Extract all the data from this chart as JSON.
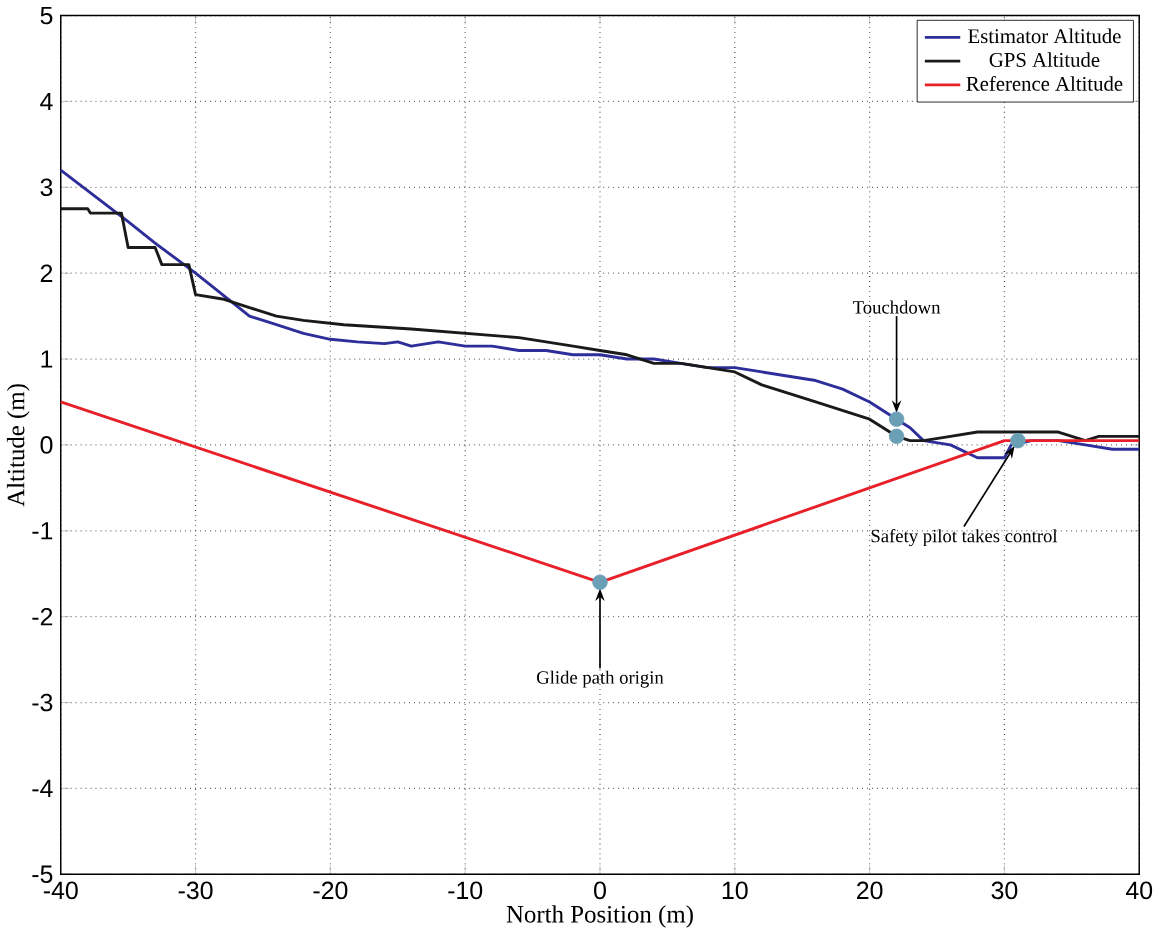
{
  "chart_data": {
    "type": "line",
    "xlabel": "North Position (m)",
    "ylabel": "Altitude (m)",
    "xlim": [
      -40,
      40
    ],
    "ylim": [
      -5,
      5
    ],
    "xticks": [
      -40,
      -30,
      -20,
      -10,
      0,
      10,
      20,
      30,
      40
    ],
    "yticks": [
      -5,
      -4,
      -3,
      -2,
      -1,
      0,
      1,
      2,
      3,
      4,
      5
    ],
    "grid": true,
    "legend": "top right",
    "marker": "none",
    "line_style": "solid",
    "series": [
      {
        "name": "Estimator Altitude",
        "color": "#2e2e9a",
        "x": [
          -40,
          -35,
          -33,
          -30,
          -28,
          -26,
          -24,
          -22,
          -20,
          -18,
          -16,
          -15,
          -14,
          -12,
          -10,
          -8,
          -6,
          -4,
          -2,
          0,
          2,
          4,
          6,
          8,
          10,
          12,
          14,
          16,
          18,
          20,
          22,
          23,
          24,
          26,
          28,
          30,
          30.5,
          32,
          34,
          36,
          38,
          40
        ],
        "values": [
          3.2,
          2.6,
          2.35,
          2.0,
          1.75,
          1.5,
          1.4,
          1.3,
          1.23,
          1.2,
          1.18,
          1.2,
          1.15,
          1.2,
          1.15,
          1.15,
          1.1,
          1.1,
          1.05,
          1.05,
          1.0,
          1.0,
          0.95,
          0.9,
          0.9,
          0.85,
          0.8,
          0.75,
          0.65,
          0.5,
          0.3,
          0.2,
          0.05,
          0.0,
          -0.15,
          -0.15,
          0.0,
          0.05,
          0.05,
          0.0,
          -0.05,
          -0.05
        ]
      },
      {
        "name": "GPS Altitude",
        "color": "#1a1a1a",
        "x": [
          -40,
          -38,
          -37.8,
          -35.5,
          -35,
          -33,
          -32.5,
          -30.5,
          -30,
          -28,
          -26,
          -24,
          -22,
          -19,
          -14,
          -10,
          -6,
          -2,
          0,
          2,
          4,
          6,
          8,
          10,
          12,
          14,
          16,
          18,
          20,
          21,
          22,
          23,
          24,
          26,
          28,
          34,
          35,
          36,
          37,
          40
        ],
        "values": [
          2.75,
          2.75,
          2.7,
          2.7,
          2.3,
          2.3,
          2.1,
          2.1,
          1.75,
          1.7,
          1.6,
          1.5,
          1.45,
          1.4,
          1.35,
          1.3,
          1.25,
          1.15,
          1.1,
          1.05,
          0.95,
          0.95,
          0.9,
          0.85,
          0.7,
          0.6,
          0.5,
          0.4,
          0.3,
          0.2,
          0.1,
          0.05,
          0.05,
          0.1,
          0.15,
          0.15,
          0.1,
          0.05,
          0.1,
          0.1
        ]
      },
      {
        "name": "Reference Altitude",
        "color": "#e8202a",
        "x": [
          -40,
          0,
          30,
          40
        ],
        "values": [
          0.5,
          -1.6,
          0.05,
          0.05
        ]
      },
      {
        "type": "scatter",
        "marker": "circle",
        "color": "#6a9fb5",
        "x": [
          0,
          22,
          22,
          31
        ],
        "values": [
          -1.6,
          0.3,
          0.1,
          0.05
        ]
      }
    ],
    "annotations": [
      {
        "text": "Touchdown",
        "x": 22,
        "y": 0.3
      },
      {
        "text": "Safety pilot takes control",
        "x": 31,
        "y": 0.05
      },
      {
        "text": "Glide path origin",
        "x": 0,
        "y": -1.6
      }
    ]
  }
}
